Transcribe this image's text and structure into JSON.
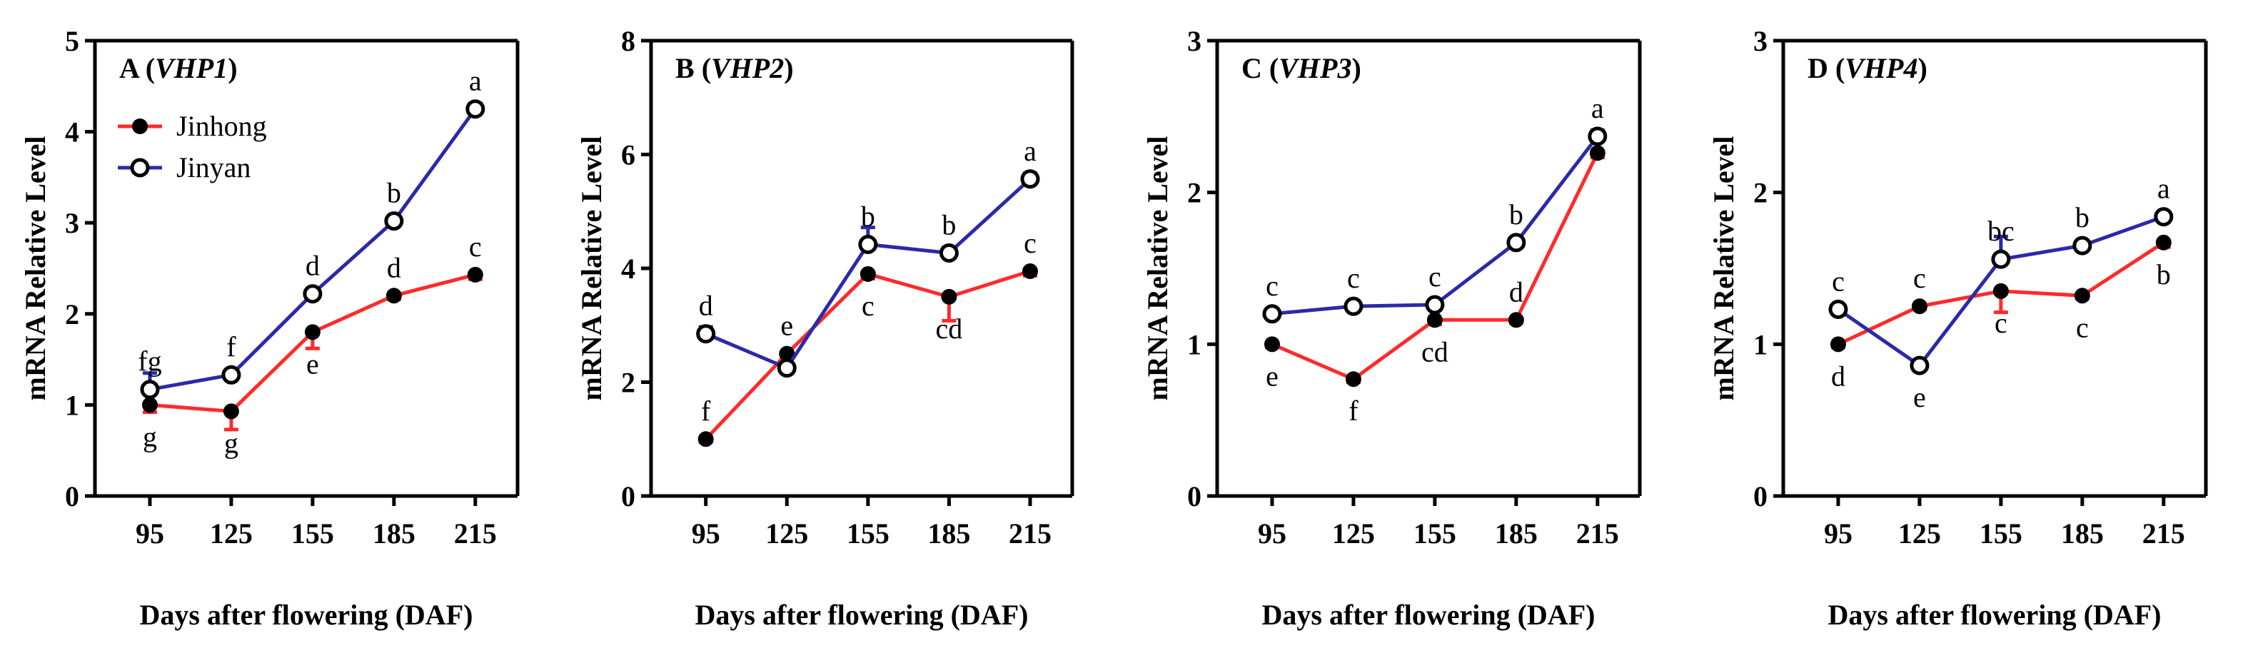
{
  "colors": {
    "jinhong": "#ff2a2a",
    "jinyan": "#2a2aa8",
    "axis": "#000000"
  },
  "legend": {
    "jinhong": "Jinhong",
    "jinyan": "Jinyan"
  },
  "chart_data": [
    {
      "type": "line",
      "panel_letter": "A",
      "gene": "VHP1",
      "xlabel": "Days after flowering (DAF)",
      "ylabel": "mRNA Relative Level",
      "x": [
        95,
        125,
        155,
        185,
        215
      ],
      "ylim": [
        0,
        5
      ],
      "yticks": [
        0,
        1,
        2,
        3,
        4,
        5
      ],
      "series": [
        {
          "name": "Jinhong",
          "values": [
            1.0,
            0.93,
            1.8,
            2.2,
            2.43
          ],
          "errors": [
            0.08,
            0.2,
            0.18,
            0.04,
            0.05
          ],
          "letters": [
            "g",
            "g",
            "e",
            "d",
            "c"
          ],
          "letter_pos": [
            "below",
            "below",
            "below",
            "above",
            "above"
          ]
        },
        {
          "name": "Jinyan",
          "values": [
            1.17,
            1.33,
            2.22,
            3.02,
            4.25
          ],
          "errors": [
            0.18,
            0.05,
            0.05,
            0.05,
            0.06
          ],
          "letters": [
            "fg",
            "f",
            "d",
            "b",
            "a"
          ],
          "letter_pos": [
            "above",
            "above",
            "above",
            "above",
            "above"
          ]
        }
      ],
      "show_legend": true
    },
    {
      "type": "line",
      "panel_letter": "B",
      "gene": "VHP2",
      "xlabel": "Days after flowering (DAF)",
      "ylabel": "mRNA Relative Level",
      "x": [
        95,
        125,
        155,
        185,
        215
      ],
      "ylim": [
        0,
        8
      ],
      "yticks": [
        0,
        2,
        4,
        6,
        8
      ],
      "series": [
        {
          "name": "Jinhong",
          "values": [
            1.0,
            2.5,
            3.9,
            3.5,
            3.95
          ],
          "errors": [
            0.05,
            0.05,
            0.08,
            0.42,
            0.08
          ],
          "letters": [
            "f",
            "e",
            "c",
            "cd",
            "c"
          ],
          "letter_pos": [
            "above",
            "above",
            "below",
            "below",
            "above"
          ]
        },
        {
          "name": "Jinyan",
          "values": [
            2.85,
            2.25,
            4.42,
            4.27,
            5.57
          ],
          "errors": [
            0.12,
            0.08,
            0.3,
            0.1,
            0.1
          ],
          "letters": [
            "d",
            "",
            "b",
            "b",
            "a"
          ],
          "letter_pos": [
            "above",
            "above",
            "above",
            "above",
            "above"
          ]
        }
      ],
      "show_legend": false
    },
    {
      "type": "line",
      "panel_letter": "C",
      "gene": "VHP3",
      "xlabel": "Days after flowering (DAF)",
      "ylabel": "mRNA Relative Level",
      "x": [
        95,
        125,
        155,
        185,
        215
      ],
      "ylim": [
        0,
        3
      ],
      "yticks": [
        0,
        1,
        2,
        3
      ],
      "series": [
        {
          "name": "Jinhong",
          "values": [
            1.0,
            0.77,
            1.16,
            1.16,
            2.26
          ],
          "errors": [
            0.02,
            0.02,
            0.03,
            0.02,
            0.03
          ],
          "letters": [
            "e",
            "f",
            "cd",
            "d",
            ""
          ],
          "letter_pos": [
            "below",
            "below",
            "below",
            "above",
            "above"
          ]
        },
        {
          "name": "Jinyan",
          "values": [
            1.2,
            1.25,
            1.26,
            1.67,
            2.37
          ],
          "errors": [
            0.03,
            0.03,
            0.03,
            0.03,
            0.04
          ],
          "letters": [
            "c",
            "c",
            "c",
            "b",
            "a"
          ],
          "letter_pos": [
            "above",
            "above",
            "above",
            "above",
            "above"
          ]
        }
      ],
      "show_legend": false
    },
    {
      "type": "line",
      "panel_letter": "D",
      "gene": "VHP4",
      "xlabel": "Days after flowering (DAF)",
      "ylabel": "mRNA Relative Level",
      "x": [
        95,
        125,
        155,
        185,
        215
      ],
      "ylim": [
        0,
        3
      ],
      "yticks": [
        0,
        1,
        2,
        3
      ],
      "series": [
        {
          "name": "Jinhong",
          "values": [
            1.0,
            1.25,
            1.35,
            1.32,
            1.67
          ],
          "errors": [
            0.02,
            0.02,
            0.14,
            0.02,
            0.03
          ],
          "letters": [
            "d",
            "c",
            "c",
            "c",
            "b"
          ],
          "letter_pos": [
            "below",
            "above",
            "below",
            "below",
            "below"
          ]
        },
        {
          "name": "Jinyan",
          "values": [
            1.23,
            0.86,
            1.56,
            1.65,
            1.84
          ],
          "errors": [
            0.03,
            0.03,
            0.15,
            0.03,
            0.03
          ],
          "letters": [
            "c",
            "e",
            "bc",
            "b",
            "a"
          ],
          "letter_pos": [
            "above",
            "below",
            "above",
            "above",
            "above"
          ]
        }
      ],
      "show_legend": false
    }
  ]
}
